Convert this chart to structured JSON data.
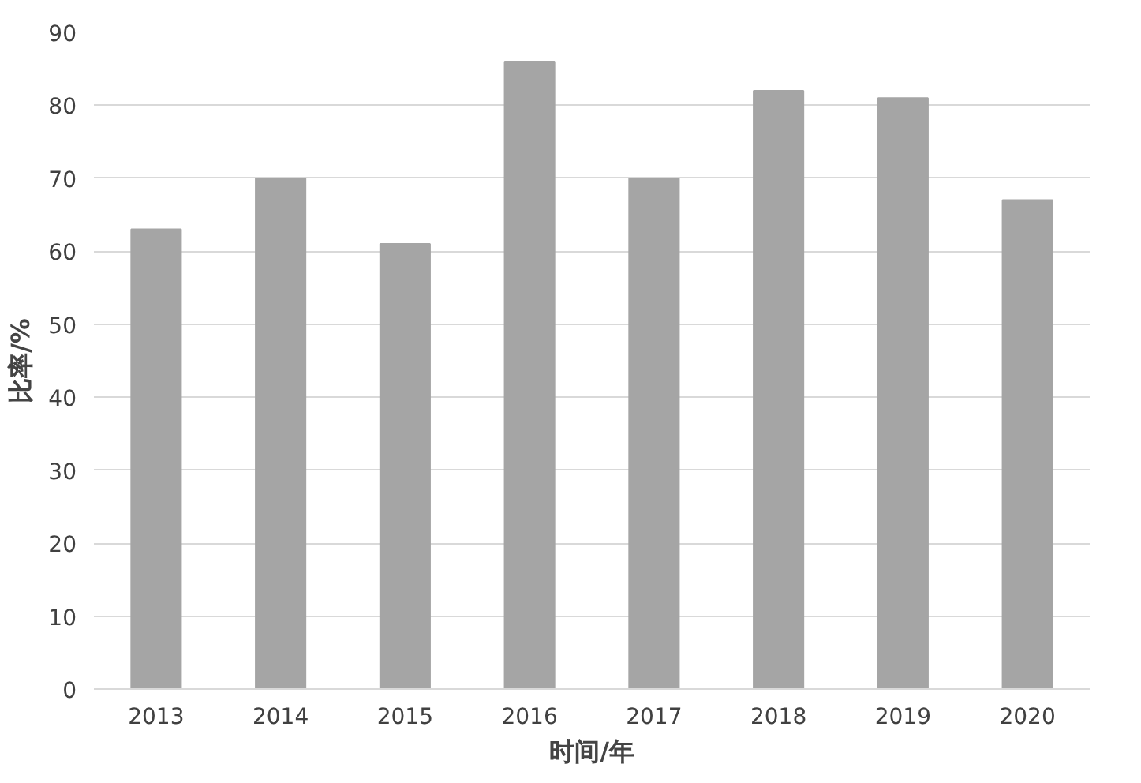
{
  "chart_data": {
    "type": "bar",
    "xlabel": "时间/年",
    "ylabel": "比率/%",
    "categories": [
      "2013",
      "2014",
      "2015",
      "2016",
      "2017",
      "2018",
      "2019",
      "2020"
    ],
    "values": [
      63,
      70,
      61,
      86,
      70,
      82,
      81,
      67
    ],
    "color": "#a5a5a5",
    "ylim": [
      0,
      90
    ],
    "yticks": [
      0,
      10,
      20,
      30,
      40,
      50,
      60,
      70,
      80,
      90
    ],
    "grid": "y"
  }
}
